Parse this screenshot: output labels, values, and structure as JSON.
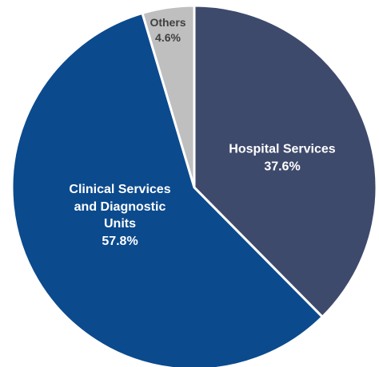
{
  "chart_data": {
    "type": "pie",
    "categories": [
      "Hospital Services",
      "Clinical Services and Diagnostic Units",
      "Others"
    ],
    "values": [
      37.6,
      57.8,
      4.6
    ],
    "value_labels": [
      "37.6%",
      "57.8%",
      "4.6%"
    ],
    "colors": [
      "#3e4a6c",
      "#0b4a8d",
      "#bfbfbf"
    ]
  }
}
